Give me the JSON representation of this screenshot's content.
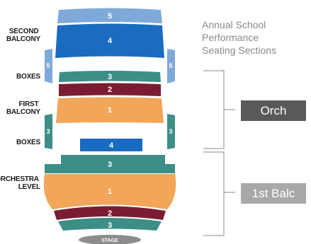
{
  "colors": {
    "section_5": "#7fa9d9",
    "section_4": "#1a6cc0",
    "section_3": "#3d8e87",
    "section_2": "#7a1d33",
    "section_1": "#f2a659",
    "stage": "#8c8c8c",
    "tag_orch": "#595959",
    "tag_balc": "#a8a8a8",
    "bracket": "#8a8a8a"
  },
  "level_labels": {
    "second_balcony": [
      "SECOND",
      "BALCONY"
    ],
    "boxes_upper": "BOXES",
    "first_balcony": [
      "FIRST",
      "BALCONY"
    ],
    "boxes_lower": "BOXES",
    "orchestra_level": [
      "ORCHESTRA",
      "LEVEL"
    ]
  },
  "sections": {
    "sb_5": "5",
    "sb_4": "4",
    "box_left_upper": "5",
    "box_right_upper": "5",
    "fb_3": "3",
    "fb_2": "2",
    "fb_1": "1",
    "box_left_lower": "3",
    "box_right_lower": "3",
    "orch_4": "4",
    "orch_3_top": "3",
    "orch_1": "1",
    "orch_2": "2",
    "orch_3_bottom": "3"
  },
  "stage_label": "STAGE",
  "side_title": [
    "Annual School",
    "Performance",
    "Seating Sections"
  ],
  "tags": {
    "upper": "Orch",
    "lower": "1st Balc"
  }
}
